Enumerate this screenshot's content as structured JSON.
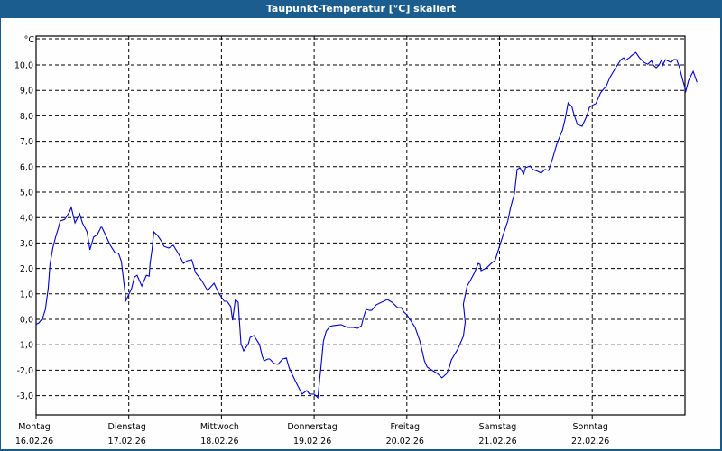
{
  "window": {
    "title": "Taupunkt-Temperatur [°C] skaliert",
    "title_bg": "#1c5d8f",
    "border": "#1a5a8a"
  },
  "chart_data": {
    "type": "line",
    "title": "Taupunkt-Temperatur [°C] skaliert",
    "xlabel": "",
    "ylabel": "°C",
    "ylim": [
      -3.8,
      11.2
    ],
    "grid": true,
    "legend": null,
    "y_ticks": [
      "10,0",
      "9,0",
      "8,0",
      "7,0",
      "6,0",
      "5,0",
      "4,0",
      "3,0",
      "2,0",
      "1,0",
      "0,0",
      "-1,0",
      "-2,0",
      "-3,0"
    ],
    "y_tick_values": [
      10,
      9,
      8,
      7,
      6,
      5,
      4,
      3,
      2,
      1,
      0,
      -1,
      -2,
      -3
    ],
    "x_ticks": [
      {
        "day": "Montag",
        "date": "16.02.26"
      },
      {
        "day": "Dienstag",
        "date": "17.02.26"
      },
      {
        "day": "Mittwoch",
        "date": "18.02.26"
      },
      {
        "day": "Donnerstag",
        "date": "19.02.26"
      },
      {
        "day": "Freitag",
        "date": "20.02.26"
      },
      {
        "day": "Samstag",
        "date": "21.02.26"
      },
      {
        "day": "Sonntag",
        "date": "22.02.26"
      }
    ],
    "series": [
      {
        "name": "Taupunkt-Temperatur",
        "color": "#0000cc",
        "x_days": [
          0.0,
          0.03,
          0.07,
          0.1,
          0.13,
          0.15,
          0.18,
          0.21,
          0.24,
          0.26,
          0.31,
          0.36,
          0.38,
          0.42,
          0.47,
          0.5,
          0.55,
          0.58,
          0.62,
          0.66,
          0.7,
          0.71,
          0.8,
          0.85,
          0.89,
          0.92,
          0.97,
          1.03,
          1.06,
          1.09,
          1.14,
          1.19,
          1.22,
          1.23,
          1.25,
          1.27,
          1.31,
          1.35,
          1.38,
          1.43,
          1.48,
          1.54,
          1.59,
          1.63,
          1.68,
          1.72,
          1.78,
          1.85,
          1.92,
          1.97,
          2.03,
          2.06,
          2.1,
          2.12,
          2.15,
          2.18,
          2.21,
          2.24,
          2.29,
          2.31,
          2.35,
          2.41,
          2.44,
          2.46,
          2.5,
          2.52,
          2.57,
          2.61,
          2.66,
          2.7,
          2.73,
          2.8,
          2.87,
          2.92,
          2.95,
          3.0,
          3.04,
          3.07,
          3.1,
          3.13,
          3.17,
          3.2,
          3.29,
          3.36,
          3.42,
          3.47,
          3.51,
          3.53,
          3.56,
          3.6,
          3.62,
          3.67,
          3.79,
          3.84,
          3.9,
          3.94,
          3.97,
          4.0,
          4.09,
          4.14,
          4.19,
          4.22,
          4.28,
          4.33,
          4.38,
          4.43,
          4.46,
          4.48,
          4.55,
          4.61,
          4.63,
          4.61,
          4.65,
          4.69,
          4.73,
          4.77,
          4.79,
          4.8,
          4.86,
          4.92,
          4.95,
          4.97,
          5.04,
          5.09,
          5.12,
          5.16,
          5.19,
          5.22,
          5.26,
          5.28,
          5.33,
          5.36,
          5.41,
          5.45,
          5.49,
          5.53,
          5.55,
          5.58,
          5.62,
          5.68,
          5.71,
          5.74,
          5.78,
          5.8,
          5.84,
          5.89,
          5.94,
          5.97,
          6.0,
          6.04,
          6.09,
          6.12,
          6.15,
          6.19,
          6.26,
          6.31,
          6.34,
          6.36,
          6.4,
          6.42,
          6.47,
          6.51,
          6.56,
          6.6,
          6.64,
          6.66,
          6.69,
          6.72,
          6.75,
          6.76,
          6.79,
          6.85,
          6.88,
          6.91,
          6.94,
          6.97,
          7.01,
          7.04,
          7.09,
          7.13,
          7.17,
          7.2,
          7.24,
          7.28,
          7.3,
          7.32,
          7.36,
          7.4,
          7.45
        ],
        "values": [
          -0.2,
          -0.14,
          0.04,
          0.39,
          1.21,
          2.16,
          2.8,
          3.23,
          3.58,
          3.86,
          3.93,
          4.22,
          4.4,
          3.79,
          4.15,
          3.79,
          3.44,
          2.73,
          3.23,
          3.33,
          3.62,
          3.62,
          2.91,
          2.62,
          2.59,
          2.27,
          0.74,
          1.21,
          1.66,
          1.73,
          1.31,
          1.73,
          1.7,
          2.2,
          2.73,
          3.44,
          3.3,
          3.09,
          2.87,
          2.8,
          2.91,
          2.55,
          2.2,
          2.3,
          2.34,
          1.84,
          1.56,
          1.13,
          1.42,
          1.03,
          0.71,
          0.71,
          0.5,
          -0.04,
          0.78,
          0.67,
          -0.96,
          -1.24,
          -0.96,
          -0.71,
          -0.64,
          -0.99,
          -1.45,
          -1.63,
          -1.56,
          -1.56,
          -1.74,
          -1.77,
          -1.56,
          -1.52,
          -1.91,
          -2.45,
          -2.94,
          -2.8,
          -2.94,
          -2.94,
          -3.08,
          -1.99,
          -0.85,
          -0.46,
          -0.28,
          -0.25,
          -0.21,
          -0.32,
          -0.32,
          -0.35,
          -0.25,
          0.04,
          0.39,
          0.35,
          0.35,
          0.57,
          0.78,
          0.67,
          0.46,
          0.46,
          0.28,
          0.18,
          -0.32,
          -0.85,
          -1.63,
          -1.88,
          -2.02,
          -2.13,
          -2.3,
          -2.13,
          -1.88,
          -1.6,
          -1.17,
          -0.67,
          -0.11,
          0.6,
          1.31,
          1.56,
          1.84,
          2.2,
          2.16,
          1.91,
          2.02,
          2.23,
          2.3,
          2.52,
          3.33,
          3.87,
          4.4,
          4.93,
          5.89,
          5.96,
          5.71,
          5.96,
          6.03,
          5.89,
          5.82,
          5.75,
          5.89,
          5.85,
          6.06,
          6.42,
          6.91,
          7.45,
          7.91,
          8.51,
          8.37,
          8.09,
          7.66,
          7.59,
          7.98,
          8.33,
          8.41,
          8.48,
          8.9,
          9.04,
          9.15,
          9.5,
          9.93,
          10.21,
          10.28,
          10.18,
          10.28,
          10.35,
          10.49,
          10.28,
          10.1,
          10.03,
          10.17,
          9.99,
          9.89,
          9.99,
          10.21,
          9.99,
          10.21,
          10.1,
          10.21,
          10.21,
          9.93,
          9.5,
          8.97,
          9.39,
          9.75,
          9.32
        ]
      }
    ]
  }
}
